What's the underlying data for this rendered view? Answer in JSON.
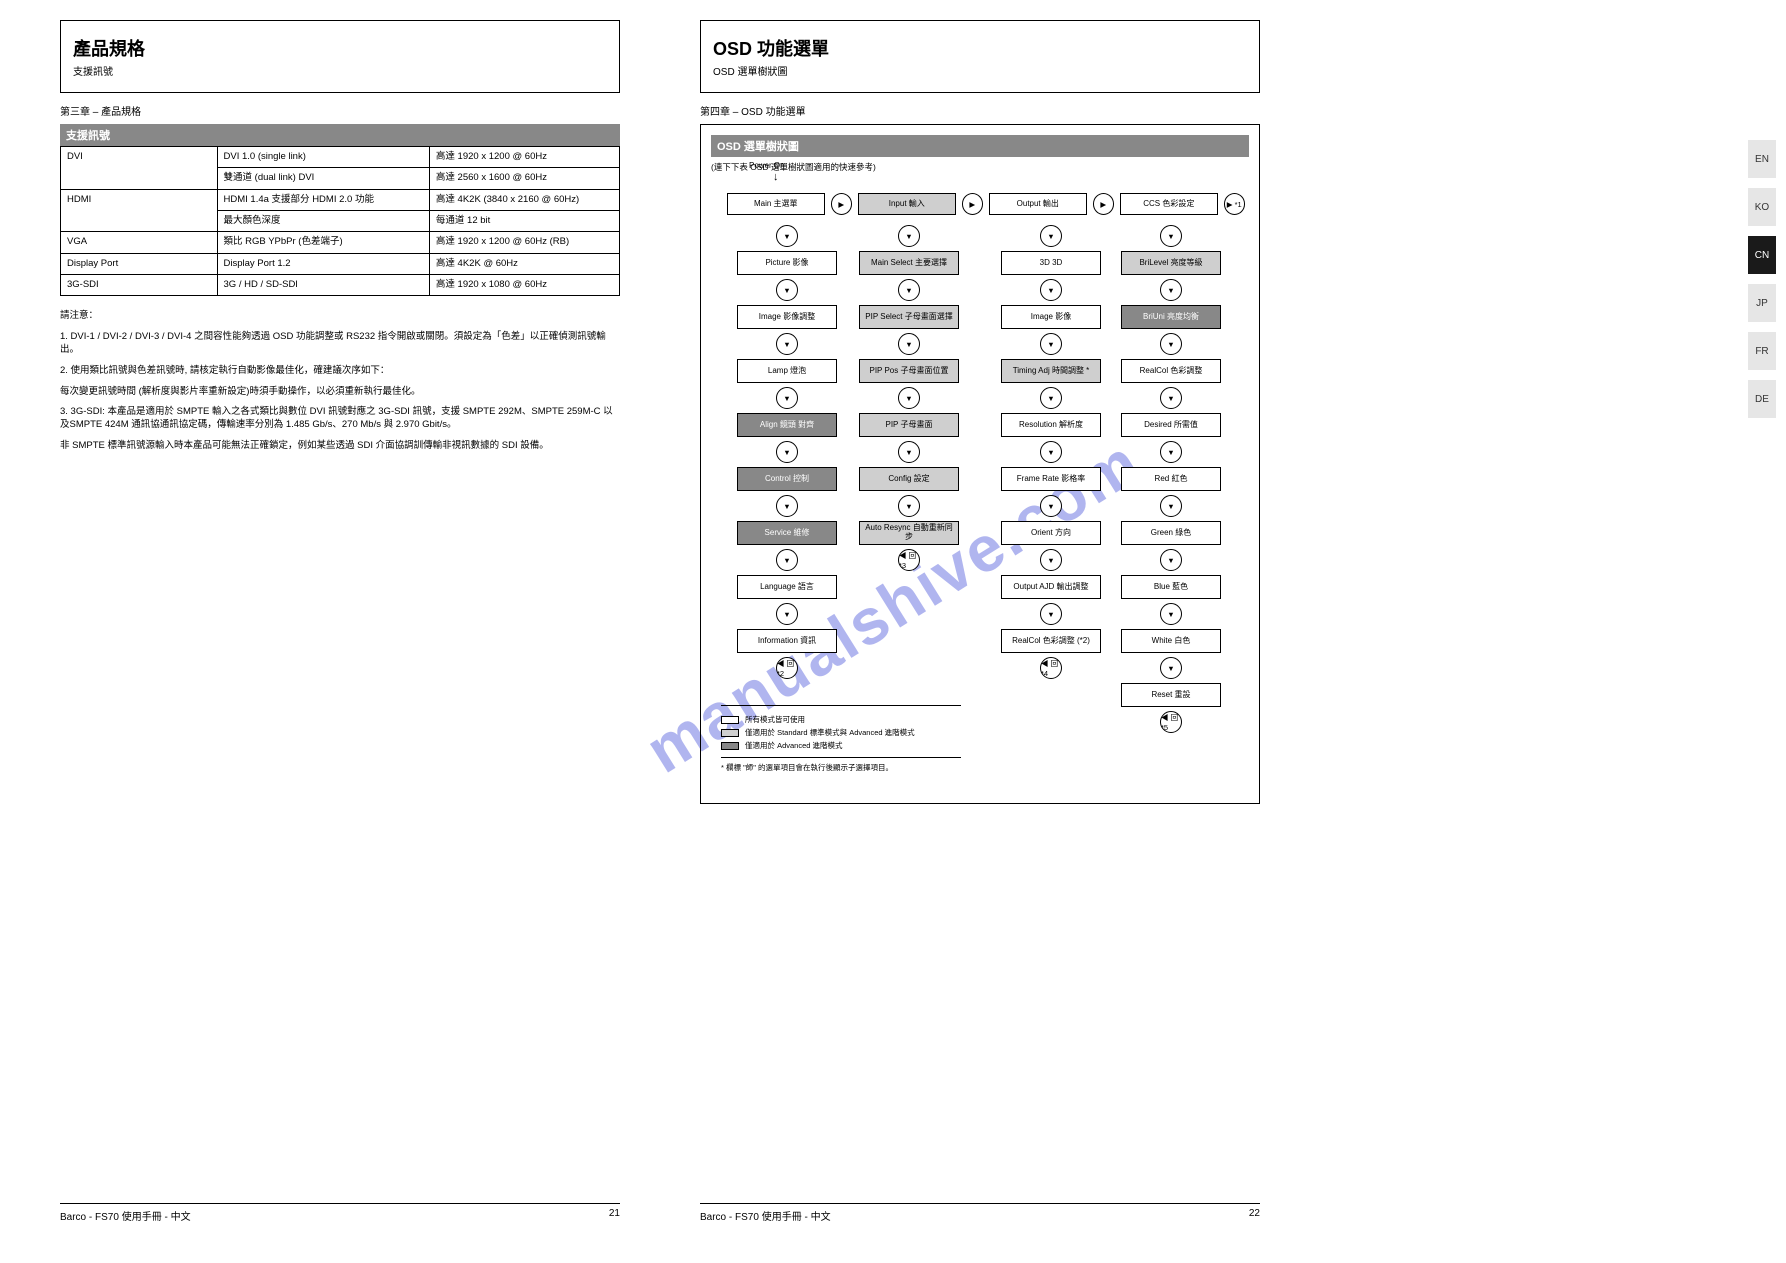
{
  "watermark": "manualshive.com",
  "sidebar_tabs": [
    "EN",
    "KO",
    "CN",
    "JP",
    "FR",
    "DE"
  ],
  "sidebar_active_index": 2,
  "left": {
    "title_main": "產品規格",
    "title_sub": "支援訊號",
    "chapter": "第三章 – 產品規格",
    "table_header": "支援訊號",
    "rows": [
      {
        "c1": "DVI",
        "c2": "DVI 1.0\n(single link)",
        "c3": "高達 1920 x 1200\n@ 60Hz"
      },
      {
        "c1": "",
        "c2": "雙通道 (dual link) DVI",
        "c3": "高達 2560 x 1600\n@ 60Hz"
      },
      {
        "c1": "HDMI",
        "c2": "HDMI 1.4a\n支援部分 HDMI 2.0 功能",
        "c3": "高達 4K2K\n(3840 x 2160\n@ 60Hz)"
      },
      {
        "c1": "",
        "c2": "最大顏色深度",
        "c3": "每通道 12 bit"
      },
      {
        "c1": "VGA",
        "c2": "類比 RGB\nYPbPr (色差端子)",
        "c3": "高達 1920 x 1200\n@ 60Hz (RB)"
      },
      {
        "c1": "Display Port",
        "c2": "Display Port 1.2",
        "c3": "高達 4K2K @ 60Hz"
      },
      {
        "c1": "3G-SDI",
        "c2": "3G / HD / SD-SDI",
        "c3": "高達 1920 x 1080\n@ 60Hz"
      }
    ],
    "notes": [
      "請注意：",
      "1. DVI-1 / DVI-2 / DVI-3 / DVI-4 之間容性能夠透過 OSD 功能調整或 RS232 指令開啟或關閉。須設定為「色差」以正確偵測訊號輸出。",
      "2. 使用類比訊號與色差訊號時, 請核定執行自動影像最佳化，確建議次序如下：",
      "每次變更訊號時間 (解析度與影片率重新設定)時須手動操作，以必須重新執行最佳化。",
      "3. 3G-SDI: 本產品是適用於 SMPTE 輸入之各式類比與數位 DVI 訊號對應之 3G-SDI 訊號，支援 SMPTE 292M、SMPTE 259M-C 以及SMPTE 424M 通訊協通訊協定碼，傳輸速率分別為 1.485 Gb/s、270 Mb/s 與 2.970 Gbit/s。",
      "非 SMPTE 標準訊號源輸入時本產品可能無法正確鎖定，例如某些透過 SDI 介面協調訓傳輸非視訊數據的 SDI 設備。"
    ]
  },
  "right": {
    "title_main": "OSD 功能選單",
    "title_sub": "OSD 選單樹狀圖",
    "chapter": "第四章 – OSD 功能選單",
    "box_header": "OSD 選單樹狀圖",
    "box_subtitle": "(連下下表 OSD 選單樹狀圖適用的快速參考)",
    "power_on": "Power On",
    "top_row": [
      {
        "label": "Main 主選單",
        "shade": "white"
      },
      {
        "conn": "▶",
        "label_after": true
      },
      {
        "label": "Input 輸入",
        "shade": "light"
      },
      {
        "conn": "▶"
      },
      {
        "label": "Output 輸出",
        "shade": "white"
      },
      {
        "conn": "▶"
      },
      {
        "label": "CCS 色彩設定",
        "shade": "white"
      },
      {
        "conn": "▶ *1"
      }
    ],
    "columnA": [
      {
        "conn": "▼",
        "label": "Picture 影像",
        "shade": "white"
      },
      {
        "conn": "▼",
        "label": "Image 影像調整",
        "shade": "white"
      },
      {
        "conn": "▼",
        "label": "Lamp 燈泡",
        "shade": "white"
      },
      {
        "conn": "▼",
        "label": "Align 鏡頭 對齊",
        "shade": "dark"
      },
      {
        "conn": "▼",
        "label": "Control 控制",
        "shade": "dark"
      },
      {
        "conn": "▼",
        "label": "Service 維修",
        "shade": "dark"
      },
      {
        "conn": "▼",
        "label": "Language 語言",
        "shade": "white"
      },
      {
        "conn": "▼",
        "label": "Information 資訊",
        "shade": "white"
      },
      {
        "conn": "◀ 回 *2"
      }
    ],
    "columnB": [
      {
        "conn": "▼",
        "label": "Main Select 主要選擇",
        "shade": "light"
      },
      {
        "conn": "▼",
        "label": "PIP Select 子母畫面選擇",
        "shade": "light"
      },
      {
        "conn": "▼",
        "label": "PIP Pos 子母畫面位置",
        "shade": "light"
      },
      {
        "conn": "▼",
        "label": "PIP 子母畫面",
        "shade": "light"
      },
      {
        "conn": "▼",
        "label": "Config 設定",
        "shade": "light"
      },
      {
        "conn": "▼",
        "label": "Auto Resync 自動重新同步",
        "shade": "light"
      },
      {
        "conn": "◀ 回 *3"
      }
    ],
    "columnC": [
      {
        "conn": "▼",
        "label": "3D 3D",
        "shade": "white"
      },
      {
        "conn": "▼",
        "label": "Image 影像",
        "shade": "white"
      },
      {
        "conn": "▼",
        "label": "Timing Adj 時間調整 *",
        "shade": "light"
      },
      {
        "conn": "▼",
        "label": "Resolution 解析度",
        "shade": "white"
      },
      {
        "conn": "▼",
        "label": "Frame Rate 影格率",
        "shade": "white"
      },
      {
        "conn": "▼",
        "label": "Orient 方向",
        "shade": "white"
      },
      {
        "conn": "▼",
        "label": "Output AJD 輸出調整",
        "shade": "white"
      },
      {
        "conn": "▼",
        "label": "RealCol 色彩調整 (*2)",
        "shade": "white"
      },
      {
        "conn": "◀ 回 *4"
      }
    ],
    "columnD": [
      {
        "conn": "▼",
        "label": "BriLevel 亮度等級",
        "shade": "light"
      },
      {
        "conn": "▼",
        "label": "BriUni 亮度均衡",
        "shade": "dark"
      },
      {
        "conn": "▼",
        "label": "RealCol 色彩調整",
        "shade": "white"
      },
      {
        "conn": "▼",
        "label": "Desired 所需值",
        "shade": "white"
      },
      {
        "conn": "▼",
        "label": "Red 紅色",
        "shade": "white"
      },
      {
        "conn": "▼",
        "label": "Green 綠色",
        "shade": "white"
      },
      {
        "conn": "▼",
        "label": "Blue 藍色",
        "shade": "white"
      },
      {
        "conn": "▼",
        "label": "White 白色",
        "shade": "white"
      },
      {
        "conn": "▼",
        "label": "Reset 重設",
        "shade": "white"
      },
      {
        "conn": "◀ 回 *5"
      }
    ],
    "legend": [
      {
        "swatch": "w",
        "text": "所有模式皆可使用"
      },
      {
        "swatch": "l",
        "text": "僅適用於 Standard 標準模式與 Advanced 進階模式"
      },
      {
        "swatch": "d",
        "text": "僅適用於 Advanced 進階模式"
      }
    ],
    "legend_note": "* 欄標 \"師\" 的選單項目會在執行後顯示子選擇項目。"
  },
  "footer_left": {
    "text": "Barco - FS70 使用手冊 - 中文",
    "page": "21"
  },
  "footer_right": {
    "text": "Barco - FS70 使用手冊 - 中文",
    "page": "22"
  },
  "colors": {
    "header_bg": "#888888",
    "light_bg": "#cfcfcf",
    "dark_bg": "#888888",
    "border": "#000000",
    "watermark": "rgba(80,90,220,0.45)"
  }
}
